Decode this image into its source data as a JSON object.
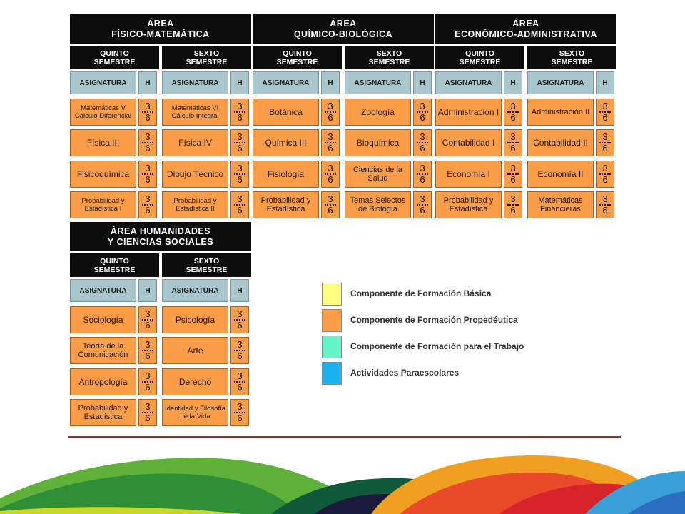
{
  "areas": [
    {
      "title": [
        "ÁREA",
        "FÍSICO-MATEMÁTICA"
      ],
      "semesters": [
        "QUINTO SEMESTRE",
        "SEXTO SEMESTRE"
      ],
      "q": [
        {
          "name": "Matemáticas V Cálculo Diferencial",
          "num": "3",
          "den": "6"
        },
        {
          "name": "Física III",
          "num": "3",
          "den": "6"
        },
        {
          "name": "Fisicoquímica",
          "num": "3",
          "den": "6"
        },
        {
          "name": "Probabilidad y Estadística I",
          "num": "3",
          "den": "6"
        }
      ],
      "s": [
        {
          "name": "Matemáticas VI Cálculo Integral",
          "num": "3",
          "den": "6"
        },
        {
          "name": "Física IV",
          "num": "3",
          "den": "6"
        },
        {
          "name": "Dibujo Técnico",
          "num": "3",
          "den": "6"
        },
        {
          "name": "Probabilidad y Estadística II",
          "num": "3",
          "den": "6"
        }
      ]
    },
    {
      "title": [
        "ÁREA",
        "QUÍMICO-BIOLÓGICA"
      ],
      "semesters": [
        "QUINTO SEMESTRE",
        "SEXTO SEMESTRE"
      ],
      "q": [
        {
          "name": "Botánica",
          "num": "3",
          "den": "6"
        },
        {
          "name": "Química III",
          "num": "3",
          "den": "6"
        },
        {
          "name": "Fisiología",
          "num": "3",
          "den": "6"
        },
        {
          "name": "Probabilidad y Estadística",
          "num": "3",
          "den": "6"
        }
      ],
      "s": [
        {
          "name": "Zoología",
          "num": "3",
          "den": "6"
        },
        {
          "name": "Bioquímica",
          "num": "3",
          "den": "6"
        },
        {
          "name": "Ciencias de la Salud",
          "num": "3",
          "den": "6"
        },
        {
          "name": "Temas Selectos de Biología",
          "num": "3",
          "den": "6"
        }
      ]
    },
    {
      "title": [
        "ÁREA",
        "ECONÓMICO-ADMINISTRATIVA"
      ],
      "semesters": [
        "QUINTO SEMESTRE",
        "SEXTO SEMESTRE"
      ],
      "q": [
        {
          "name": "Administración I",
          "num": "3",
          "den": "6"
        },
        {
          "name": "Contabilidad I",
          "num": "3",
          "den": "6"
        },
        {
          "name": "Economía I",
          "num": "3",
          "den": "6"
        },
        {
          "name": "Probabilidad y Estadística",
          "num": "3",
          "den": "6"
        }
      ],
      "s": [
        {
          "name": "Administración II",
          "num": "3",
          "den": "6"
        },
        {
          "name": "Contabilidad II",
          "num": "3",
          "den": "6"
        },
        {
          "name": "Economía II",
          "num": "3",
          "den": "6"
        },
        {
          "name": "Matemáticas Financieras",
          "num": "3",
          "den": "6"
        }
      ]
    },
    {
      "title": [
        "ÁREA HUMANIDADES",
        "Y CIENCIAS SOCIALES"
      ],
      "semesters": [
        "QUINTO SEMESTRE",
        "SEXTO SEMESTRE"
      ],
      "q": [
        {
          "name": "Sociología",
          "num": "3",
          "den": "6"
        },
        {
          "name": "Teoría de la Comunicación",
          "num": "3",
          "den": "6"
        },
        {
          "name": "Antropología",
          "num": "3",
          "den": "6"
        },
        {
          "name": "Probabilidad y Estadística",
          "num": "3",
          "den": "6"
        }
      ],
      "s": [
        {
          "name": "Psicología",
          "num": "3",
          "den": "6"
        },
        {
          "name": "Arte",
          "num": "3",
          "den": "6"
        },
        {
          "name": "Derecho",
          "num": "3",
          "den": "6"
        },
        {
          "name": "Identidad y Filosofía de la Vida",
          "num": "3",
          "den": "6"
        }
      ]
    }
  ],
  "col_headers": {
    "asignatura": "ASIGNATURA",
    "h": "H"
  },
  "legend": [
    {
      "label": "Componente de Formación Básica",
      "color": "#ffff80"
    },
    {
      "label": "Componente de Formación Propedéutica",
      "color": "#fa9d46"
    },
    {
      "label": "Componente de Formación para el Trabajo",
      "color": "#66f5c8"
    },
    {
      "label": "Actividades Paraescolares",
      "color": "#1ab2f0"
    }
  ],
  "colors": {
    "subject": "#fa9d46",
    "header": "#0d0d0d",
    "column_header": "#a9c6cc",
    "separator": "#9b2b2b"
  }
}
